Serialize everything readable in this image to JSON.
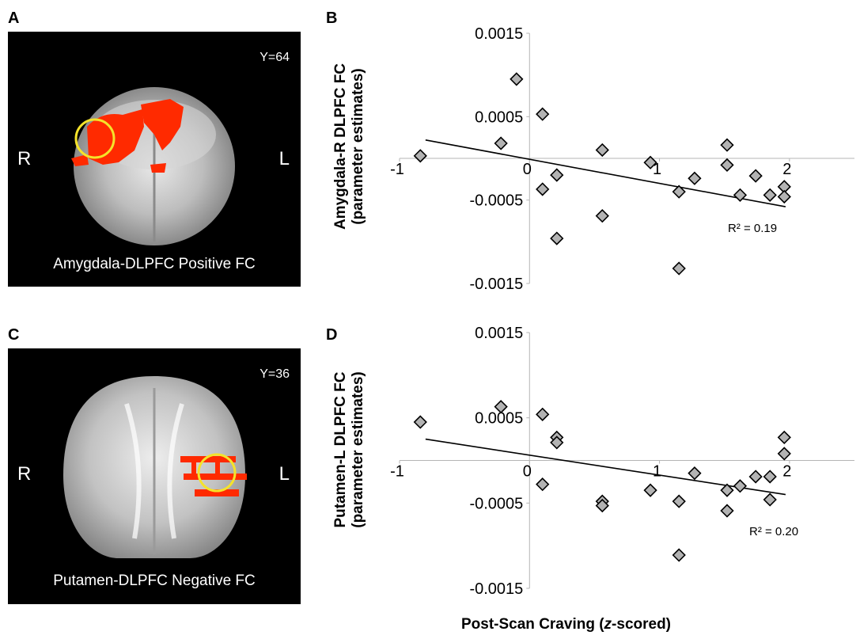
{
  "panels": {
    "a": {
      "letter": "A",
      "slice": "Y=64",
      "right_label": "R",
      "left_label": "L",
      "caption": "Amygdala-DLPFC Positive FC",
      "overlay_color": "#ff2a00",
      "marker_color": "#f5e32a"
    },
    "b": {
      "letter": "B"
    },
    "c": {
      "letter": "C",
      "slice": "Y=36",
      "right_label": "R",
      "left_label": "L",
      "caption": "Putamen-DLPFC Negative FC",
      "overlay_color": "#ff2a00",
      "marker_color": "#f5e32a"
    },
    "d": {
      "letter": "D"
    }
  },
  "x_title": {
    "prefix": "Post-Scan Craving (",
    "italic": "z",
    "suffix": "-scored)"
  },
  "chart_data": [
    {
      "type": "scatter",
      "panel": "B",
      "ylabel_line1": "Amygdala-R DLPFC FC",
      "ylabel_line2": "(parameter estimates)",
      "xlim": [
        -1,
        2.5
      ],
      "ylim": [
        -0.0015,
        0.0015
      ],
      "x_ticks": [
        -1,
        0,
        1,
        2
      ],
      "x_tick_labels": [
        "-1",
        "0",
        "1",
        "2"
      ],
      "y_ticks": [
        0.0015,
        0.0005,
        -0.0005,
        -0.0015
      ],
      "y_tick_labels": [
        "0.0015",
        "0.0005",
        "-0.0005",
        "-0.0015"
      ],
      "r_squared": "R² = 0.19",
      "trendline": {
        "x": [
          -0.8,
          1.97
        ],
        "y": [
          0.00022,
          -0.00058
        ]
      },
      "points": [
        {
          "x": -0.84,
          "y": 3e-05
        },
        {
          "x": -0.22,
          "y": 0.00018
        },
        {
          "x": -0.1,
          "y": 0.00095
        },
        {
          "x": 0.1,
          "y": 0.00053
        },
        {
          "x": 0.1,
          "y": -0.00037
        },
        {
          "x": 0.21,
          "y": -0.0002
        },
        {
          "x": 0.21,
          "y": -0.00096
        },
        {
          "x": 0.56,
          "y": 0.0001
        },
        {
          "x": 0.56,
          "y": -0.00069
        },
        {
          "x": 0.93,
          "y": -5e-05
        },
        {
          "x": 1.15,
          "y": -0.0004
        },
        {
          "x": 1.15,
          "y": -0.00132
        },
        {
          "x": 1.27,
          "y": -0.00024
        },
        {
          "x": 1.52,
          "y": 0.00016
        },
        {
          "x": 1.52,
          "y": -8e-05
        },
        {
          "x": 1.62,
          "y": -0.00044
        },
        {
          "x": 1.74,
          "y": -0.00021
        },
        {
          "x": 1.85,
          "y": -0.00044
        },
        {
          "x": 1.96,
          "y": -0.00034
        },
        {
          "x": 1.96,
          "y": -0.00046
        }
      ]
    },
    {
      "type": "scatter",
      "panel": "D",
      "ylabel_line1": "Putamen-L DLPFC FC",
      "ylabel_line2": "(parameter estimates)",
      "xlim": [
        -1,
        2.5
      ],
      "ylim": [
        -0.0015,
        0.0015
      ],
      "x_ticks": [
        -1,
        0,
        1,
        2
      ],
      "x_tick_labels": [
        "-1",
        "0",
        "1",
        "2"
      ],
      "y_ticks": [
        0.0015,
        0.0005,
        -0.0005,
        -0.0015
      ],
      "y_tick_labels": [
        "0.0015",
        "0.0005",
        "-0.0005",
        "-0.0015"
      ],
      "r_squared": "R² = 0.20",
      "trendline": {
        "x": [
          -0.8,
          1.97
        ],
        "y": [
          0.00025,
          -0.0004
        ]
      },
      "points": [
        {
          "x": -0.84,
          "y": 0.00045
        },
        {
          "x": -0.22,
          "y": 0.00063
        },
        {
          "x": 0.1,
          "y": 0.00054
        },
        {
          "x": 0.1,
          "y": -0.00028
        },
        {
          "x": 0.21,
          "y": 0.00027
        },
        {
          "x": 0.21,
          "y": 0.00021
        },
        {
          "x": 0.56,
          "y": -0.00048
        },
        {
          "x": 0.56,
          "y": -0.00053
        },
        {
          "x": 0.93,
          "y": -0.00035
        },
        {
          "x": 1.15,
          "y": -0.00048
        },
        {
          "x": 1.15,
          "y": -0.00111
        },
        {
          "x": 1.27,
          "y": -0.00015
        },
        {
          "x": 1.52,
          "y": -0.00035
        },
        {
          "x": 1.52,
          "y": -0.00059
        },
        {
          "x": 1.62,
          "y": -0.0003
        },
        {
          "x": 1.74,
          "y": -0.00019
        },
        {
          "x": 1.85,
          "y": -0.00019
        },
        {
          "x": 1.85,
          "y": -0.00046
        },
        {
          "x": 1.96,
          "y": 0.00027
        },
        {
          "x": 1.96,
          "y": 8e-05
        }
      ]
    }
  ]
}
